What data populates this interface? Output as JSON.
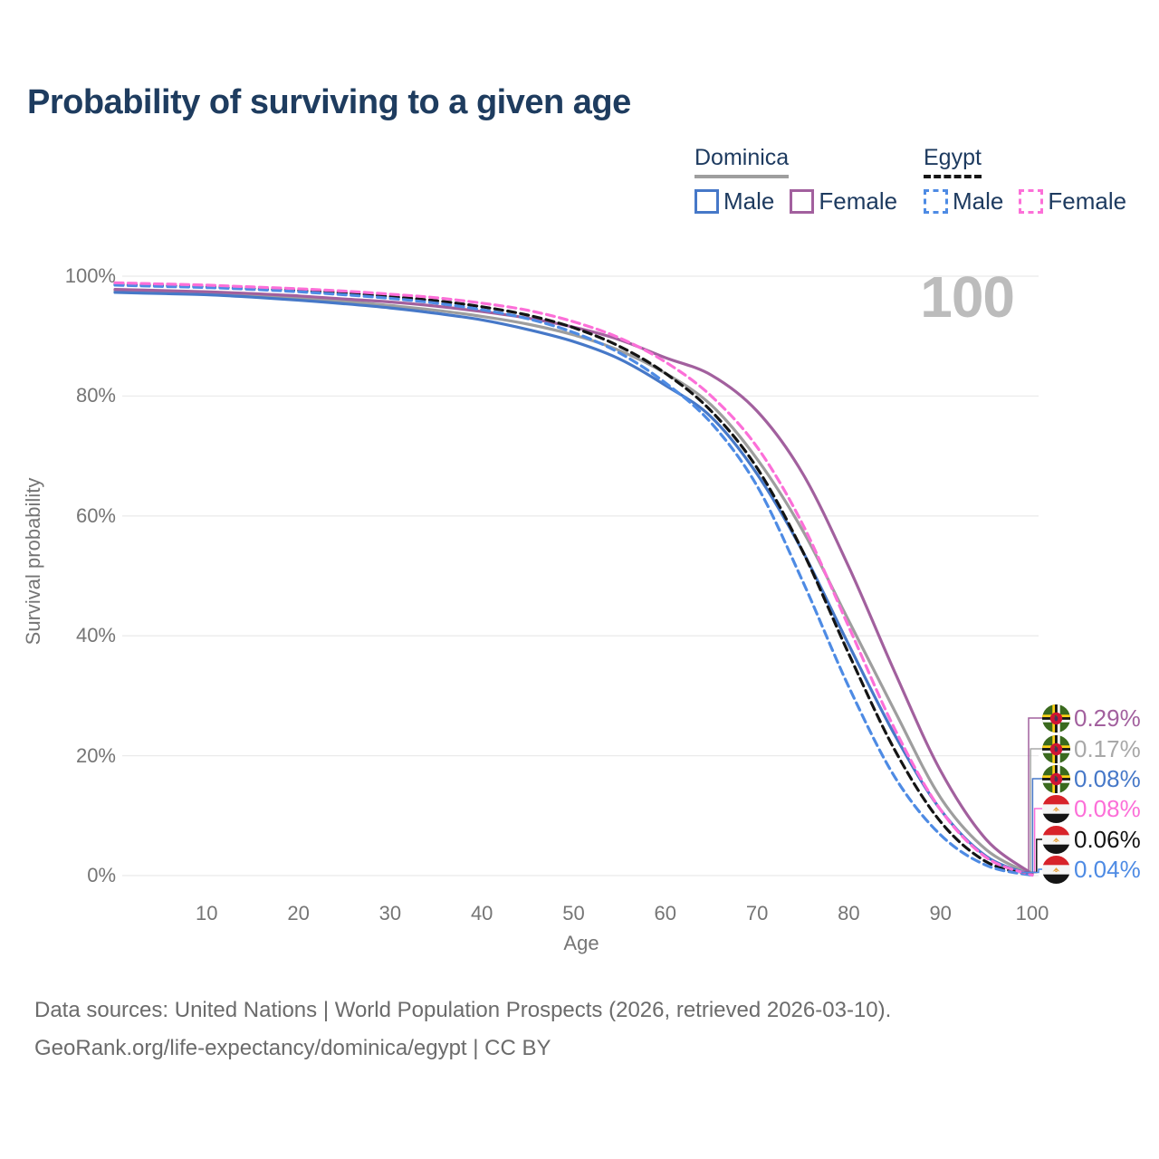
{
  "title": "Probability of surviving to a given age",
  "watermark": "100",
  "legend": {
    "groups": [
      {
        "label": "Dominica",
        "line_style": "solid",
        "line_color": "#9e9e9e",
        "items": [
          {
            "label": "Male",
            "color": "#4678c8",
            "dashed": false
          },
          {
            "label": "Female",
            "color": "#a2609e",
            "dashed": false
          }
        ]
      },
      {
        "label": "Egypt",
        "line_style": "dashed",
        "line_color": "#161616",
        "items": [
          {
            "label": "Male",
            "color": "#4e8be4",
            "dashed": true
          },
          {
            "label": "Female",
            "color": "#fc6fd8",
            "dashed": true
          }
        ]
      }
    ]
  },
  "chart_data": {
    "type": "line",
    "title": "Probability of surviving to a given age",
    "xlabel": "Age",
    "ylabel": "Survival probability",
    "xlim": [
      0,
      100
    ],
    "ylim": [
      0,
      100
    ],
    "grid": true,
    "x_ticks": [
      10,
      20,
      30,
      40,
      50,
      60,
      70,
      80,
      90,
      100
    ],
    "y_ticks": [
      "0%",
      "20%",
      "40%",
      "60%",
      "80%",
      "100%"
    ],
    "x": [
      0,
      5,
      10,
      15,
      20,
      25,
      30,
      35,
      40,
      45,
      50,
      55,
      60,
      65,
      70,
      75,
      80,
      85,
      90,
      95,
      100
    ],
    "series": [
      {
        "name": "Dominica — Both sexes",
        "country": "Dominica",
        "sex": "Both",
        "style": "solid",
        "color": "#9e9e9e",
        "final_value_label": "0.17%",
        "values": [
          97.6,
          97.4,
          97.2,
          96.8,
          96.3,
          95.8,
          95.1,
          94.3,
          93.3,
          92.0,
          90.2,
          87.6,
          83.8,
          78.5,
          69.5,
          57.5,
          42.5,
          27.5,
          13.0,
          4.3,
          0.17
        ]
      },
      {
        "name": "Dominica — Male",
        "country": "Dominica",
        "sex": "Male",
        "style": "solid",
        "color": "#4678c8",
        "final_value_label": "0.08%",
        "values": [
          97.3,
          97.1,
          96.9,
          96.5,
          96.0,
          95.4,
          94.7,
          93.8,
          92.7,
          91.1,
          89.1,
          86.2,
          81.8,
          76.5,
          67.0,
          54.0,
          38.5,
          23.5,
          11.0,
          3.2,
          0.08
        ]
      },
      {
        "name": "Dominica — Female",
        "country": "Dominica",
        "sex": "Female",
        "style": "solid",
        "color": "#a2609e",
        "final_value_label": "0.29%",
        "values": [
          97.8,
          97.6,
          97.4,
          97.1,
          96.7,
          96.2,
          95.7,
          95.0,
          94.1,
          93.0,
          91.5,
          89.4,
          86.4,
          83.5,
          77.5,
          67.0,
          51.5,
          34.0,
          17.5,
          6.0,
          0.29
        ]
      },
      {
        "name": "Egypt — Both sexes",
        "country": "Egypt",
        "sex": "Both",
        "style": "dashed",
        "color": "#141414",
        "final_value_label": "0.06%",
        "values": [
          98.6,
          98.4,
          98.2,
          97.9,
          97.6,
          97.2,
          96.6,
          95.9,
          94.9,
          93.5,
          91.4,
          88.3,
          83.8,
          77.5,
          68.0,
          54.0,
          37.0,
          21.0,
          9.0,
          2.3,
          0.06
        ]
      },
      {
        "name": "Egypt — Male",
        "country": "Egypt",
        "sex": "Male",
        "style": "dashed",
        "color": "#4e8be4",
        "final_value_label": "0.04%",
        "values": [
          98.5,
          98.3,
          98.1,
          97.8,
          97.4,
          96.9,
          96.3,
          95.5,
          94.4,
          92.9,
          90.6,
          87.2,
          82.2,
          75.5,
          65.0,
          49.0,
          31.5,
          16.5,
          6.8,
          1.7,
          0.04
        ]
      },
      {
        "name": "Egypt — Female",
        "country": "Egypt",
        "sex": "Female",
        "style": "dashed",
        "color": "#fc6fd8",
        "final_value_label": "0.08%",
        "values": [
          98.9,
          98.7,
          98.5,
          98.2,
          97.9,
          97.5,
          97.0,
          96.4,
          95.5,
          94.3,
          92.4,
          89.7,
          85.7,
          80.0,
          71.5,
          58.5,
          41.5,
          24.5,
          11.0,
          3.0,
          0.08
        ]
      }
    ]
  },
  "end_labels": [
    {
      "value": "0.29%",
      "color": "#a2609e",
      "flag": "dominica",
      "series": "Dominica — Female"
    },
    {
      "value": "0.17%",
      "color": "#a8a8a8",
      "flag": "dominica",
      "series": "Dominica — Both sexes"
    },
    {
      "value": "0.08%",
      "color": "#4678c8",
      "flag": "dominica",
      "series": "Dominica — Male"
    },
    {
      "value": "0.08%",
      "color": "#fc6fd8",
      "flag": "egypt",
      "series": "Egypt — Female"
    },
    {
      "value": "0.06%",
      "color": "#141414",
      "flag": "egypt",
      "series": "Egypt — Both sexes"
    },
    {
      "value": "0.04%",
      "color": "#4e8be4",
      "flag": "egypt",
      "series": "Egypt — Male"
    }
  ],
  "footer": {
    "line1": "Data sources: United Nations | World Population Prospects (2026, retrieved 2026-03-10).",
    "line2": "GeoRank.org/life-expectancy/dominica/egypt | CC BY"
  }
}
